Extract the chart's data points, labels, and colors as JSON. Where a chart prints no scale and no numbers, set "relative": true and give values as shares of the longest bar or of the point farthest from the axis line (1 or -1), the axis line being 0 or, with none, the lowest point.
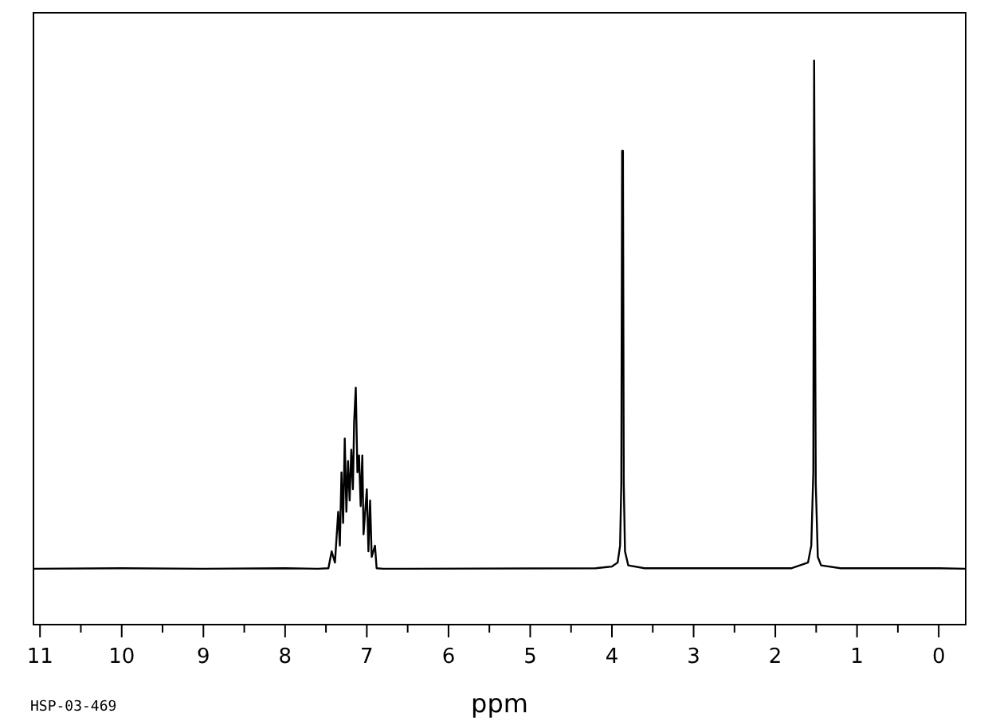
{
  "chart_data": {
    "type": "line",
    "relative": true,
    "xlabel": "ppm",
    "annotations": [
      "HSP-03-469"
    ],
    "xlim": [
      11.08,
      -0.33
    ],
    "xticks": [
      11,
      {
        "value": 10.5,
        "label": null
      },
      10,
      {
        "value": 9.5,
        "label": null
      },
      9,
      {
        "value": 8.5,
        "label": null
      },
      8,
      {
        "value": 7.5,
        "label": null
      },
      7,
      {
        "value": 6.5,
        "label": null
      },
      6,
      {
        "value": 5.5,
        "label": null
      },
      5,
      {
        "value": 4.5,
        "label": null
      },
      4,
      {
        "value": 3.5,
        "label": null
      },
      3,
      {
        "value": 2.5,
        "label": null
      },
      2,
      {
        "value": 1.5,
        "label": null
      },
      1,
      {
        "value": 0.5,
        "label": null
      },
      0
    ],
    "grid": false,
    "marker": "none",
    "line_style": "solid",
    "series": [
      {
        "color": "#000000",
        "x": [
          11.08,
          10,
          9,
          8,
          7.6,
          7.47,
          7.43,
          7.39,
          7.35,
          7.33,
          7.31,
          7.29,
          7.27,
          7.25,
          7.23,
          7.21,
          7.19,
          7.17,
          7.155,
          7.135,
          7.115,
          7.095,
          7.075,
          7.055,
          7.04,
          7.0,
          6.98,
          6.96,
          6.94,
          6.9,
          6.88,
          6.8,
          4.2,
          4.0,
          3.93,
          3.9,
          3.885,
          3.875,
          3.865,
          3.855,
          3.84,
          3.8,
          3.6,
          1.8,
          1.6,
          1.56,
          1.535,
          1.525,
          1.515,
          1.505,
          1.48,
          1.44,
          1.2,
          0,
          -0.33
        ],
        "values": [
          0.099,
          0.1,
          0.099,
          0.1,
          0.099,
          0.1,
          0.13,
          0.11,
          0.2,
          0.14,
          0.27,
          0.18,
          0.33,
          0.2,
          0.29,
          0.22,
          0.31,
          0.24,
          0.36,
          0.42,
          0.27,
          0.3,
          0.21,
          0.3,
          0.16,
          0.24,
          0.13,
          0.22,
          0.12,
          0.14,
          0.1,
          0.099,
          0.1,
          0.103,
          0.11,
          0.14,
          0.25,
          0.84,
          0.84,
          0.25,
          0.13,
          0.105,
          0.1,
          0.1,
          0.11,
          0.14,
          0.27,
          1.0,
          0.62,
          0.25,
          0.12,
          0.105,
          0.1,
          0.1,
          0.099
        ]
      }
    ]
  }
}
